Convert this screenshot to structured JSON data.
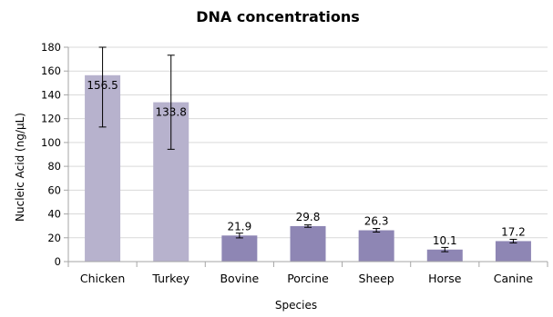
{
  "chart_data": {
    "type": "bar",
    "title": "DNA concentrations",
    "xlabel": "Species",
    "ylabel": "Nucleic Acid (ng/µL)",
    "categories": [
      "Chicken",
      "Turkey",
      "Bovine",
      "Porcine",
      "Sheep",
      "Horse",
      "Canine"
    ],
    "values": [
      156.5,
      133.8,
      21.9,
      29.8,
      26.3,
      10.1,
      17.2
    ],
    "value_labels": [
      "156.5",
      "133.8",
      "21.9",
      "29.8",
      "26.3",
      "10.1",
      "17.2"
    ],
    "error": [
      43.5,
      39.5,
      2.0,
      1.0,
      1.5,
      1.8,
      1.5
    ],
    "ylim": [
      0,
      180
    ],
    "yticks": [
      0,
      20,
      40,
      60,
      80,
      100,
      120,
      140,
      160,
      180
    ],
    "grid": true,
    "legend": "none",
    "colors": {
      "poultry_bar": "#b7b2cd",
      "mammal_bar": "#8e86b4",
      "grid": "#d9d9d9",
      "axis": "#a6a6a6",
      "error_bar": "#000000"
    },
    "bar_color_groups": [
      "poultry_bar",
      "poultry_bar",
      "mammal_bar",
      "mammal_bar",
      "mammal_bar",
      "mammal_bar",
      "mammal_bar"
    ]
  }
}
